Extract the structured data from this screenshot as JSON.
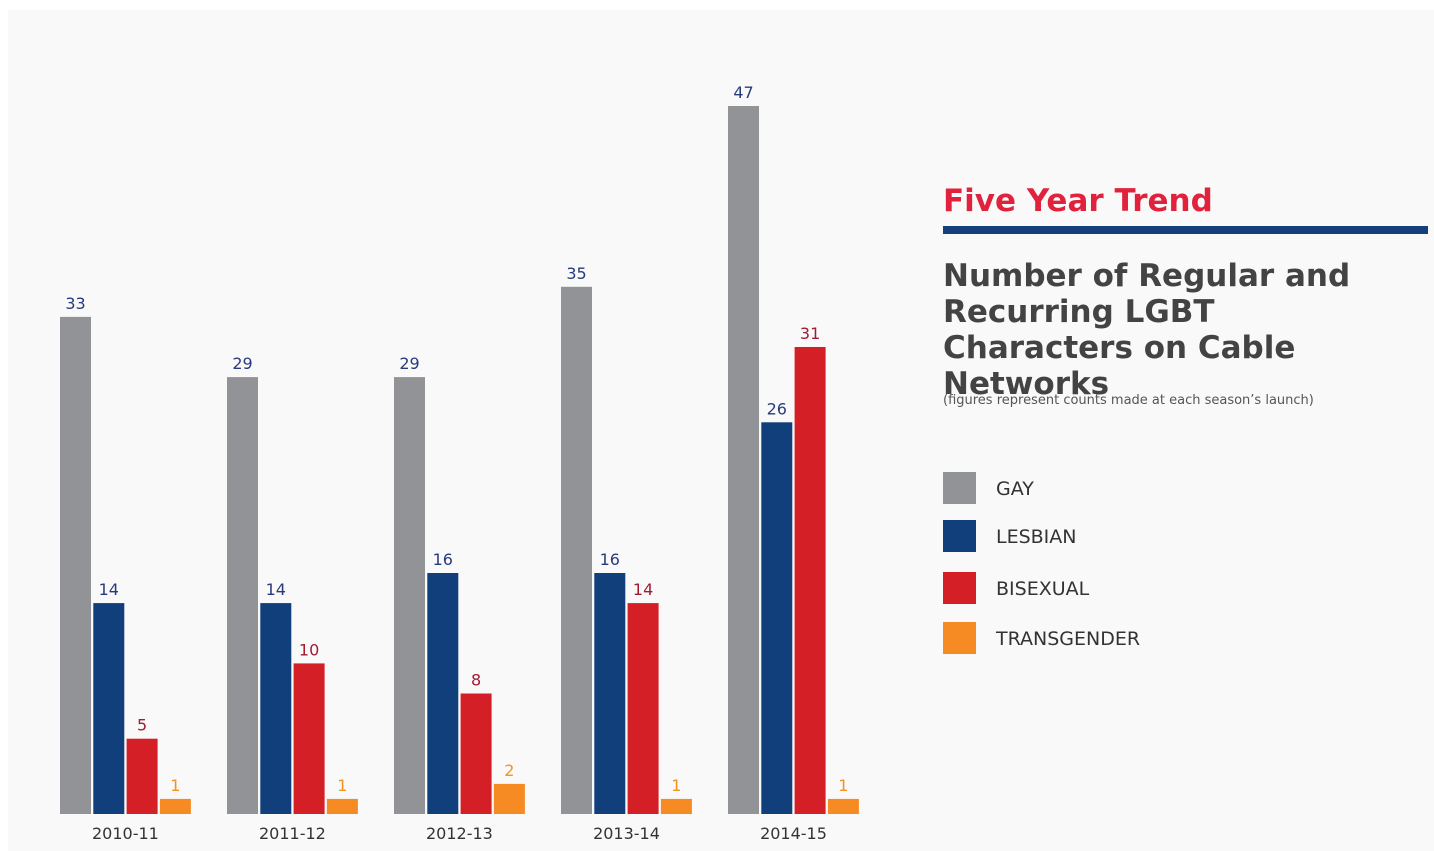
{
  "header": {
    "section_title": "Five Year Trend",
    "chart_title": "Number of Regular and Recurring LGBT Characters on Cable Networks",
    "note": "(figures represent counts made at each season’s launch)"
  },
  "colors": {
    "accent_red": "#e1223c",
    "rule_navy": "#16407c",
    "title_gray": "#434343",
    "value_navy": "#283a7e",
    "value_red": "#a11b33",
    "value_orange": "#f3921e"
  },
  "legend": [
    {
      "label": "GAY",
      "color": "#929397"
    },
    {
      "label": "LESBIAN",
      "color": "#103f7b"
    },
    {
      "label": "BISEXUAL",
      "color": "#d41f26"
    },
    {
      "label": "TRANSGENDER",
      "color": "#f58b22"
    }
  ],
  "chart_data": {
    "type": "bar",
    "title": "Number of Regular and Recurring LGBT Characters on Cable Networks",
    "subtitle": "(figures represent counts made at each season’s launch)",
    "xlabel": "",
    "ylabel": "",
    "ylim": [
      0,
      47
    ],
    "grid": false,
    "legend_position": "right",
    "categories": [
      "2010-11",
      "2011-12",
      "2012-13",
      "2013-14",
      "2014-15"
    ],
    "series": [
      {
        "name": "GAY",
        "color": "#929397",
        "label_color": "#283a7e",
        "values": [
          33,
          29,
          29,
          35,
          47
        ]
      },
      {
        "name": "LESBIAN",
        "color": "#103f7b",
        "label_color": "#283a7e",
        "values": [
          14,
          14,
          16,
          16,
          26
        ]
      },
      {
        "name": "BISEXUAL",
        "color": "#d41f26",
        "label_color": "#a11b33",
        "values": [
          5,
          10,
          8,
          14,
          31
        ]
      },
      {
        "name": "TRANSGENDER",
        "color": "#f58b22",
        "label_color": "#f3921e",
        "values": [
          1,
          1,
          2,
          1,
          1
        ]
      }
    ]
  }
}
